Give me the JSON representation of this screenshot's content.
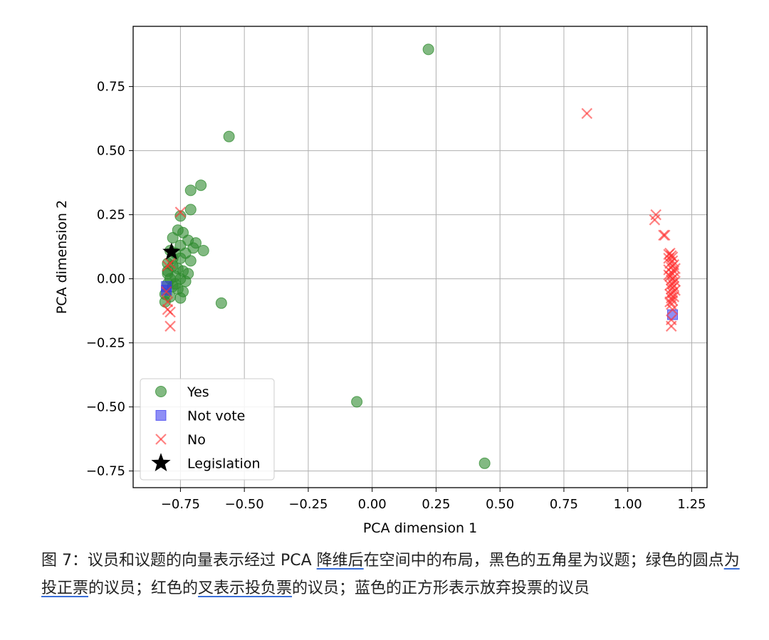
{
  "chart_data": {
    "type": "scatter",
    "xlabel": "PCA dimension 1",
    "ylabel": "PCA dimension 2",
    "xlim": [
      -0.935,
      1.31
    ],
    "ylim": [
      -0.815,
      0.985
    ],
    "xticks": [
      -0.75,
      -0.5,
      -0.25,
      0.0,
      0.25,
      0.5,
      0.75,
      1.0,
      1.25
    ],
    "xtick_labels": [
      "−0.75",
      "−0.50",
      "−0.25",
      "0.00",
      "0.25",
      "0.50",
      "0.75",
      "1.00",
      "1.25"
    ],
    "yticks": [
      -0.75,
      -0.5,
      -0.25,
      0.0,
      0.25,
      0.5,
      0.75
    ],
    "ytick_labels": [
      "−0.75",
      "−0.50",
      "−0.25",
      "0.00",
      "0.25",
      "0.50",
      "0.75"
    ],
    "grid": true,
    "legend_position": "lower-left",
    "series": [
      {
        "name": "Yes",
        "marker": "circle",
        "color": "#2e8b2e",
        "points": [
          [
            0.22,
            0.895
          ],
          [
            -0.56,
            0.555
          ],
          [
            -0.67,
            0.365
          ],
          [
            -0.71,
            0.345
          ],
          [
            -0.71,
            0.27
          ],
          [
            -0.75,
            0.245
          ],
          [
            -0.66,
            0.11
          ],
          [
            -0.59,
            -0.095
          ],
          [
            -0.06,
            -0.48
          ],
          [
            0.44,
            -0.72
          ],
          [
            -0.76,
            0.19
          ],
          [
            -0.74,
            0.18
          ],
          [
            -0.78,
            0.16
          ],
          [
            -0.72,
            0.15
          ],
          [
            -0.69,
            0.14
          ],
          [
            -0.75,
            0.13
          ],
          [
            -0.7,
            0.12
          ],
          [
            -0.79,
            0.11
          ],
          [
            -0.77,
            0.1
          ],
          [
            -0.73,
            0.1
          ],
          [
            -0.75,
            0.08
          ],
          [
            -0.71,
            0.07
          ],
          [
            -0.8,
            0.06
          ],
          [
            -0.78,
            0.05
          ],
          [
            -0.76,
            0.04
          ],
          [
            -0.74,
            0.03
          ],
          [
            -0.8,
            0.02
          ],
          [
            -0.72,
            0.02
          ],
          [
            -0.77,
            0.01
          ],
          [
            -0.79,
            0.0
          ],
          [
            -0.75,
            0.0
          ],
          [
            -0.73,
            -0.01
          ],
          [
            -0.8,
            -0.02
          ],
          [
            -0.78,
            -0.03
          ],
          [
            -0.76,
            -0.04
          ],
          [
            -0.81,
            -0.06
          ],
          [
            -0.79,
            -0.07
          ],
          [
            -0.75,
            -0.075
          ],
          [
            -0.81,
            -0.09
          ],
          [
            -0.77,
            -0.02
          ],
          [
            -0.74,
            -0.05
          ],
          [
            -0.8,
            0.03
          ],
          [
            -0.78,
            0.08
          ]
        ]
      },
      {
        "name": "Not vote",
        "marker": "square",
        "color": "#3333ee",
        "points": [
          [
            -0.805,
            -0.03
          ],
          [
            -0.805,
            -0.045
          ],
          [
            1.175,
            -0.14
          ]
        ]
      },
      {
        "name": "No",
        "marker": "x",
        "color": "#ff3030",
        "points": [
          [
            0.84,
            0.645
          ],
          [
            1.11,
            0.25
          ],
          [
            1.105,
            0.23
          ],
          [
            1.145,
            0.17
          ],
          [
            1.14,
            0.17
          ],
          [
            -0.75,
            0.26
          ],
          [
            -0.8,
            0.05
          ],
          [
            -0.79,
            0.06
          ],
          [
            -0.805,
            -0.05
          ],
          [
            -0.8,
            -0.09
          ],
          [
            -0.8,
            -0.12
          ],
          [
            -0.79,
            -0.13
          ],
          [
            -0.79,
            -0.185
          ],
          [
            1.165,
            0.1
          ],
          [
            1.17,
            0.09
          ],
          [
            1.16,
            0.08
          ],
          [
            1.175,
            0.07
          ],
          [
            1.165,
            0.06
          ],
          [
            1.18,
            0.055
          ],
          [
            1.17,
            0.045
          ],
          [
            1.16,
            0.035
          ],
          [
            1.18,
            0.03
          ],
          [
            1.175,
            0.02
          ],
          [
            1.165,
            0.01
          ],
          [
            1.18,
            0.005
          ],
          [
            1.17,
            -0.005
          ],
          [
            1.185,
            -0.01
          ],
          [
            1.175,
            -0.02
          ],
          [
            1.165,
            -0.025
          ],
          [
            1.18,
            -0.03
          ],
          [
            1.17,
            -0.04
          ],
          [
            1.185,
            -0.045
          ],
          [
            1.175,
            -0.055
          ],
          [
            1.165,
            -0.06
          ],
          [
            1.18,
            -0.07
          ],
          [
            1.17,
            -0.075
          ],
          [
            1.175,
            -0.085
          ],
          [
            1.165,
            -0.09
          ],
          [
            1.17,
            -0.1
          ],
          [
            1.175,
            -0.12
          ],
          [
            1.17,
            -0.16
          ],
          [
            1.17,
            -0.185
          ],
          [
            1.175,
            0.085
          ],
          [
            1.16,
            0.095
          ],
          [
            1.185,
            0.04
          ],
          [
            1.16,
            0.015
          ]
        ]
      },
      {
        "name": "Legislation",
        "marker": "star",
        "color": "#000000",
        "points": [
          [
            -0.785,
            0.105
          ]
        ]
      }
    ]
  },
  "caption": {
    "part1": "图 7：议员和议题的向量表示经过 PCA ",
    "u1": "降维后",
    "part2": "在空间中的布局，黑色的五角星为议题；绿色的圆点",
    "u2": "为投正票",
    "part3": "的议员；红色的",
    "u3": "叉表示投负票",
    "part4": "的议员；蓝色的正方形表示放弃投票的议员"
  }
}
